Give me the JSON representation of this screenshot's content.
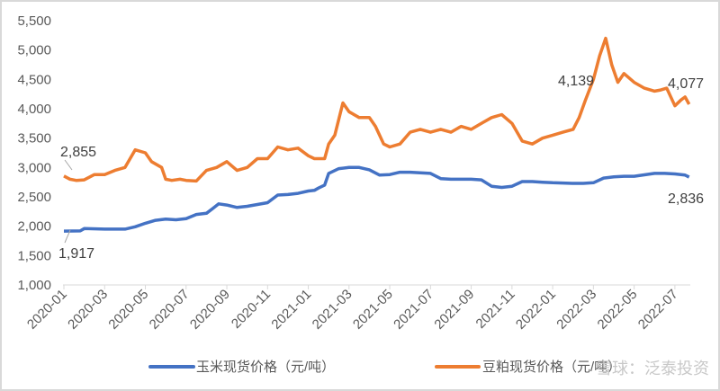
{
  "chart_data": {
    "type": "line",
    "title": "",
    "xlabel": "",
    "ylabel": "",
    "ylim": [
      1000,
      5500
    ],
    "yticks": [
      "1,000",
      "1,500",
      "2,000",
      "2,500",
      "3,000",
      "3,500",
      "4,000",
      "4,500",
      "5,000",
      "5,500"
    ],
    "ytick_values": [
      1000,
      1500,
      2000,
      2500,
      3000,
      3500,
      4000,
      4500,
      5000,
      5500
    ],
    "xticks": [
      "2020-01",
      "2020-03",
      "2020-05",
      "2020-07",
      "2020-09",
      "2020-11",
      "2021-01",
      "2021-03",
      "2021-05",
      "2021-07",
      "2021-09",
      "2021-11",
      "2022-01",
      "2022-03",
      "2022-05",
      "2022-07"
    ],
    "x_unit": "months since 2020-01",
    "grid": false,
    "legend_placement": "bottom",
    "series": [
      {
        "name": "玉米现货价格（元/吨）",
        "color": "#4472C4",
        "x": [
          0,
          0.8,
          1,
          2,
          3,
          3.5,
          4,
          4.5,
          5,
          5.5,
          6,
          6.5,
          7,
          7.3,
          7.6,
          8,
          8.5,
          9,
          9.5,
          10,
          10.5,
          11,
          11.5,
          12,
          12.3,
          12.5,
          12.8,
          13,
          13.5,
          14,
          14.5,
          15,
          15.5,
          16,
          16.5,
          17,
          17.5,
          18,
          18.5,
          19,
          19.5,
          20,
          20.5,
          21,
          21.5,
          22,
          22.5,
          23,
          23.5,
          24,
          25,
          25.5,
          26,
          26.5,
          27,
          27.5,
          28,
          29,
          29.5,
          30,
          30.5,
          30.7
        ],
        "y": [
          1917,
          1920,
          1960,
          1950,
          1950,
          1990,
          2050,
          2100,
          2120,
          2110,
          2130,
          2200,
          2220,
          2300,
          2380,
          2360,
          2320,
          2340,
          2370,
          2400,
          2530,
          2540,
          2560,
          2600,
          2610,
          2650,
          2700,
          2900,
          2980,
          3000,
          3000,
          2960,
          2870,
          2880,
          2920,
          2920,
          2910,
          2900,
          2810,
          2800,
          2800,
          2800,
          2790,
          2680,
          2660,
          2680,
          2760,
          2760,
          2750,
          2740,
          2730,
          2730,
          2740,
          2820,
          2840,
          2850,
          2850,
          2900,
          2900,
          2890,
          2870,
          2836
        ]
      },
      {
        "name": "豆粕现货价格（元/吨）",
        "color": "#ED7D31",
        "x": [
          0,
          0.3,
          0.6,
          1,
          1.5,
          2,
          2.5,
          3,
          3.5,
          4,
          4.3,
          4.8,
          5,
          5.3,
          5.7,
          6,
          6.5,
          7,
          7.5,
          8,
          8.5,
          9,
          9.5,
          10,
          10.5,
          11,
          11.5,
          12,
          12.3,
          12.8,
          13,
          13.3,
          13.7,
          14,
          14.5,
          15,
          15.3,
          15.7,
          16,
          16.5,
          17,
          17.5,
          18,
          18.5,
          19,
          19.5,
          20,
          20.5,
          21,
          21.5,
          22,
          22.5,
          23,
          23.5,
          24,
          24.5,
          25,
          25.3,
          25.6,
          26,
          26.3,
          26.6,
          26.9,
          27.2,
          27.5,
          28,
          28.5,
          29,
          29.3,
          29.6,
          30,
          30.3,
          30.5,
          30.7
        ],
        "y": [
          2855,
          2800,
          2780,
          2790,
          2880,
          2880,
          2950,
          3000,
          3300,
          3250,
          3100,
          3000,
          2800,
          2780,
          2800,
          2780,
          2770,
          2950,
          3000,
          3100,
          2950,
          3000,
          3150,
          3150,
          3350,
          3300,
          3330,
          3200,
          3150,
          3150,
          3400,
          3550,
          4100,
          3950,
          3850,
          3850,
          3700,
          3400,
          3350,
          3400,
          3600,
          3650,
          3600,
          3650,
          3600,
          3700,
          3650,
          3750,
          3850,
          3900,
          3750,
          3450,
          3400,
          3500,
          3550,
          3600,
          3650,
          3850,
          4139,
          4500,
          4900,
          5200,
          4750,
          4450,
          4600,
          4450,
          4350,
          4300,
          4320,
          4350,
          4050,
          4150,
          4200,
          4077
        ]
      }
    ],
    "annotations": [
      {
        "label": "2,855",
        "series": 1,
        "x": 0
      },
      {
        "label": "1,917",
        "series": 0,
        "x": 0
      },
      {
        "label": "4,139",
        "series": 1,
        "x": 25.6
      },
      {
        "label": "4,077",
        "series": 1,
        "x": 30.7
      },
      {
        "label": "2,836",
        "series": 0,
        "x": 30.7
      }
    ]
  },
  "watermark": "雪球：泛泰投资"
}
